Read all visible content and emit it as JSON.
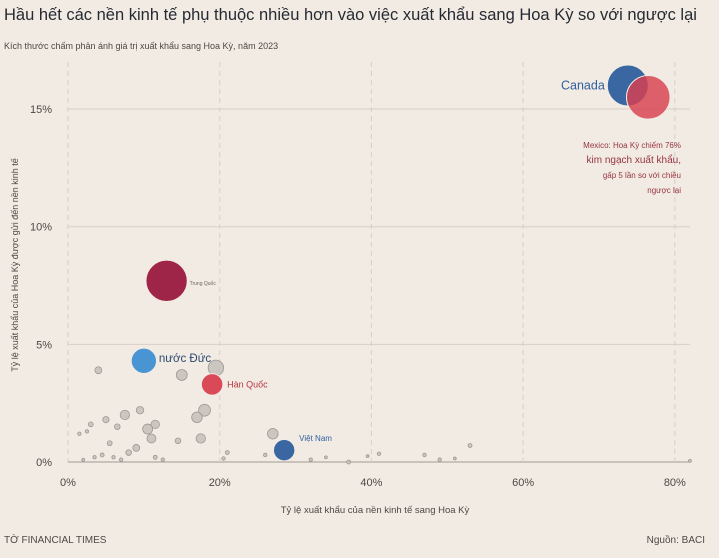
{
  "header": {
    "title": "Hầu hết các nền kinh tế phụ thuộc nhiều hơn vào việc xuất khẩu sang Hoa Kỳ so với ngược lại",
    "subtitle": "Kích thước chấm phản ánh giá trị xuất khẩu sang Hoa Kỳ, năm 2023"
  },
  "footer": {
    "source_label": "Nguồn: BACI",
    "publisher": "TỜ FINANCIAL TIMES"
  },
  "colors": {
    "background": "#f2ebe3",
    "grid": "#d8cfc6",
    "gray_bubble": "#c8c2bc",
    "gray_bubble_stroke": "#9d9893",
    "canada": "#2f5f9e",
    "mexico": "#d8404f",
    "china": "#9a1a3f",
    "germany": "#3f8fd2",
    "korea": "#d8404f",
    "vietnam": "#2f5f9e",
    "annotation": "#96343f"
  },
  "chart_data": {
    "type": "scatter",
    "title": "Hầu hết các nền kinh tế phụ thuộc nhiều hơn vào việc xuất khẩu sang Hoa Kỳ so với ngược lại",
    "subtitle": "Kích thước chấm phản ánh giá trị xuất khẩu sang Hoa Kỳ, năm 2023",
    "xlabel": "Tỷ lệ xuất khẩu của nền kinh tế sang Hoa Kỳ",
    "ylabel": "Tỷ lệ xuất khẩu của Hoa Kỳ được gửi đến nền kinh tế",
    "xlim": [
      0,
      82
    ],
    "ylim": [
      0,
      17
    ],
    "x_ticks": [
      "0%",
      "20%",
      "40%",
      "60%",
      "80%"
    ],
    "y_ticks": [
      "0%",
      "5%",
      "10%",
      "15%"
    ],
    "grid": true,
    "highlighted": [
      {
        "name": "Canada",
        "x": 73.8,
        "y": 16.0,
        "size": 421
      },
      {
        "name": "Mexico",
        "x": 76.5,
        "y": 15.5,
        "size": 475
      },
      {
        "name": "Trung Quốc",
        "x": 13.0,
        "y": 7.7,
        "size": 427
      },
      {
        "name": "nước Đức",
        "x": 10.0,
        "y": 4.3,
        "size": 160
      },
      {
        "name": "Hàn Quốc",
        "x": 19.0,
        "y": 3.3,
        "size": 116
      },
      {
        "name": "Việt Nam",
        "x": 28.5,
        "y": 0.5,
        "size": 114
      }
    ],
    "others": [
      {
        "x": 4.0,
        "y": 3.9,
        "size": 12
      },
      {
        "x": 15.0,
        "y": 3.7,
        "size": 30
      },
      {
        "x": 19.5,
        "y": 4.0,
        "size": 60
      },
      {
        "x": 18.0,
        "y": 2.2,
        "size": 35
      },
      {
        "x": 17.0,
        "y": 1.9,
        "size": 28
      },
      {
        "x": 9.5,
        "y": 2.2,
        "size": 14
      },
      {
        "x": 7.5,
        "y": 2.0,
        "size": 22
      },
      {
        "x": 11.5,
        "y": 1.6,
        "size": 18
      },
      {
        "x": 10.5,
        "y": 1.4,
        "size": 25
      },
      {
        "x": 11.0,
        "y": 1.0,
        "size": 20
      },
      {
        "x": 5.0,
        "y": 1.8,
        "size": 10
      },
      {
        "x": 6.5,
        "y": 1.5,
        "size": 8
      },
      {
        "x": 17.5,
        "y": 1.0,
        "size": 22
      },
      {
        "x": 27.0,
        "y": 1.2,
        "size": 28
      },
      {
        "x": 5.5,
        "y": 0.8,
        "size": 6
      },
      {
        "x": 9.0,
        "y": 0.6,
        "size": 12
      },
      {
        "x": 14.5,
        "y": 0.9,
        "size": 8
      },
      {
        "x": 8.0,
        "y": 0.4,
        "size": 8
      },
      {
        "x": 3.0,
        "y": 1.6,
        "size": 6
      },
      {
        "x": 1.5,
        "y": 1.2,
        "size": 3
      },
      {
        "x": 2.5,
        "y": 1.3,
        "size": 3
      },
      {
        "x": 3.5,
        "y": 0.2,
        "size": 3
      },
      {
        "x": 2.0,
        "y": 0.1,
        "size": 2
      },
      {
        "x": 4.5,
        "y": 0.3,
        "size": 4
      },
      {
        "x": 6.0,
        "y": 0.2,
        "size": 3
      },
      {
        "x": 7.0,
        "y": 0.1,
        "size": 3
      },
      {
        "x": 11.5,
        "y": 0.2,
        "size": 4
      },
      {
        "x": 12.5,
        "y": 0.1,
        "size": 3
      },
      {
        "x": 20.5,
        "y": 0.15,
        "size": 3
      },
      {
        "x": 21.0,
        "y": 0.4,
        "size": 4
      },
      {
        "x": 26.0,
        "y": 0.3,
        "size": 3
      },
      {
        "x": 32.0,
        "y": 0.1,
        "size": 3
      },
      {
        "x": 34.0,
        "y": 0.2,
        "size": 2
      },
      {
        "x": 37.0,
        "y": 0.0,
        "size": 4
      },
      {
        "x": 39.5,
        "y": 0.25,
        "size": 2
      },
      {
        "x": 41.0,
        "y": 0.35,
        "size": 3
      },
      {
        "x": 47.0,
        "y": 0.3,
        "size": 3
      },
      {
        "x": 49.0,
        "y": 0.1,
        "size": 3
      },
      {
        "x": 51.0,
        "y": 0.15,
        "size": 2
      },
      {
        "x": 53.0,
        "y": 0.7,
        "size": 4
      },
      {
        "x": 82.0,
        "y": 0.05,
        "size": 2
      }
    ],
    "labels": {
      "canada": "Canada",
      "china": "Trung Quốc",
      "germany": "nước Đức",
      "korea": "Hàn Quốc",
      "vietnam": "Việt Nam"
    },
    "annotation": [
      "Mexico: Hoa Kỳ chiếm 76%",
      "kim ngạch xuất khẩu,",
      "gấp 5 lần so với chiều",
      "ngược lại"
    ]
  }
}
